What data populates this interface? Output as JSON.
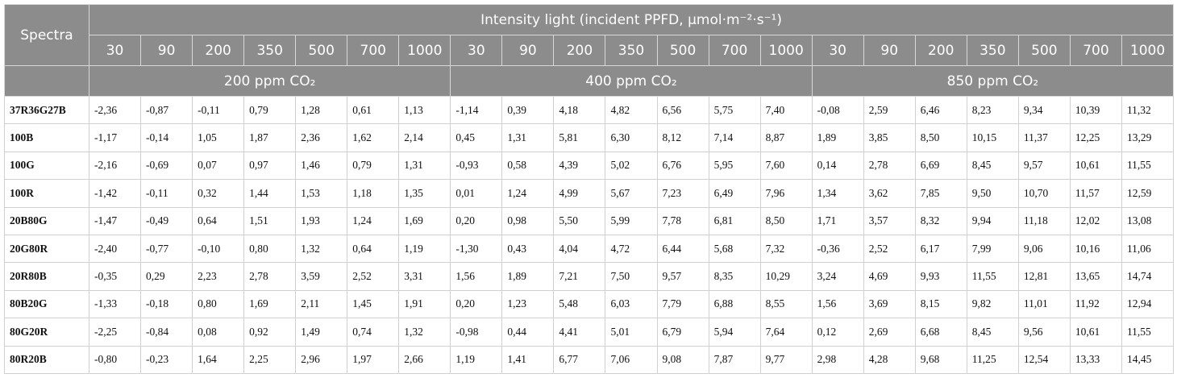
{
  "table": {
    "header": {
      "spectra": "Spectra",
      "intensity": "Intensity light (incident PPFD, µmol·m⁻²·s⁻¹)"
    },
    "groups": [
      {
        "label": "200 ppm CO₂",
        "levels": [
          "30",
          "90",
          "200",
          "350",
          "500",
          "700",
          "1000"
        ]
      },
      {
        "label": "400 ppm CO₂",
        "levels": [
          "30",
          "90",
          "200",
          "350",
          "500",
          "700",
          "1000"
        ]
      },
      {
        "label": "850 ppm CO₂",
        "levels": [
          "30",
          "90",
          "200",
          "350",
          "500",
          "700",
          "1000"
        ]
      }
    ],
    "rows": [
      {
        "name": "37R36G27B",
        "values": [
          "-2,36",
          "-0,87",
          "-0,11",
          "0,79",
          "1,28",
          "0,61",
          "1,13",
          "-1,14",
          "0,39",
          "4,18",
          "4,82",
          "6,56",
          "5,75",
          "7,40",
          "-0,08",
          "2,59",
          "6,46",
          "8,23",
          "9,34",
          "10,39",
          "11,32"
        ]
      },
      {
        "name": "100B",
        "values": [
          "-1,17",
          "-0,14",
          "1,05",
          "1,87",
          "2,36",
          "1,62",
          "2,14",
          "0,45",
          "1,31",
          "5,81",
          "6,30",
          "8,12",
          "7,14",
          "8,87",
          "1,89",
          "3,85",
          "8,50",
          "10,15",
          "11,37",
          "12,25",
          "13,29"
        ]
      },
      {
        "name": "100G",
        "values": [
          "-2,16",
          "-0,69",
          "0,07",
          "0,97",
          "1,46",
          "0,79",
          "1,31",
          "-0,93",
          "0,58",
          "4,39",
          "5,02",
          "6,76",
          "5,95",
          "7,60",
          "0,14",
          "2,78",
          "6,69",
          "8,45",
          "9,57",
          "10,61",
          "11,55"
        ]
      },
      {
        "name": "100R",
        "values": [
          "-1,42",
          "-0,11",
          "0,32",
          "1,44",
          "1,53",
          "1,18",
          "1,35",
          "0,01",
          "1,24",
          "4,99",
          "5,67",
          "7,23",
          "6,49",
          "7,96",
          "1,34",
          "3,62",
          "7,85",
          "9,50",
          "10,70",
          "11,57",
          "12,59"
        ]
      },
      {
        "name": "20B80G",
        "values": [
          "-1,47",
          "-0,49",
          "0,64",
          "1,51",
          "1,93",
          "1,24",
          "1,69",
          "0,20",
          "0,98",
          "5,50",
          "5,99",
          "7,78",
          "6,81",
          "8,50",
          "1,71",
          "3,57",
          "8,32",
          "9,94",
          "11,18",
          "12,02",
          "13,08"
        ]
      },
      {
        "name": "20G80R",
        "values": [
          "-2,40",
          "-0,77",
          "-0,10",
          "0,80",
          "1,32",
          "0,64",
          "1,19",
          "-1,30",
          "0,43",
          "4,04",
          "4,72",
          "6,44",
          "5,68",
          "7,32",
          "-0,36",
          "2,52",
          "6,17",
          "7,99",
          "9,06",
          "10,16",
          "11,06"
        ]
      },
      {
        "name": "20R80B",
        "values": [
          "-0,35",
          "0,29",
          "2,23",
          "2,78",
          "3,59",
          "2,52",
          "3,31",
          "1,56",
          "1,89",
          "7,21",
          "7,50",
          "9,57",
          "8,35",
          "10,29",
          "3,24",
          "4,69",
          "9,93",
          "11,55",
          "12,81",
          "13,65",
          "14,74"
        ]
      },
      {
        "name": "80B20G",
        "values": [
          "-1,33",
          "-0,18",
          "0,80",
          "1,69",
          "2,11",
          "1,45",
          "1,91",
          "0,20",
          "1,23",
          "5,48",
          "6,03",
          "7,79",
          "6,88",
          "8,55",
          "1,56",
          "3,69",
          "8,15",
          "9,82",
          "11,01",
          "11,92",
          "12,94"
        ]
      },
      {
        "name": "80G20R",
        "values": [
          "-2,25",
          "-0,84",
          "0,08",
          "0,92",
          "1,49",
          "0,74",
          "1,32",
          "-0,98",
          "0,44",
          "4,41",
          "5,01",
          "6,79",
          "5,94",
          "7,64",
          "0,12",
          "2,69",
          "6,68",
          "8,45",
          "9,56",
          "10,61",
          "11,55"
        ]
      },
      {
        "name": "80R20B",
        "values": [
          "-0,80",
          "-0,23",
          "1,64",
          "2,25",
          "2,96",
          "1,97",
          "2,66",
          "1,19",
          "1,41",
          "6,77",
          "7,06",
          "9,08",
          "7,87",
          "9,77",
          "2,98",
          "4,28",
          "9,68",
          "11,25",
          "12,54",
          "13,33",
          "14,45"
        ]
      }
    ]
  }
}
